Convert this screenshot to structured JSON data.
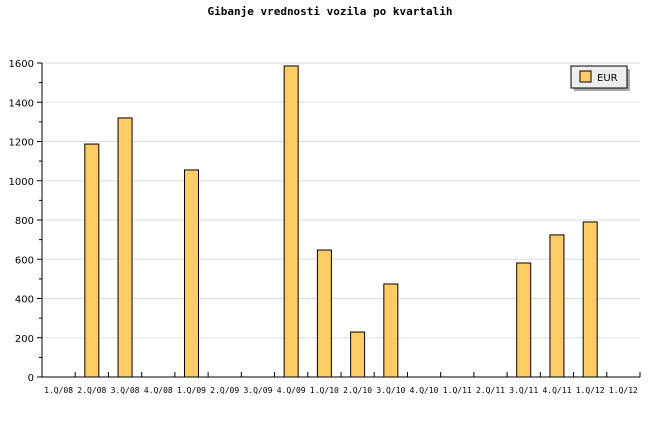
{
  "chart_data": {
    "type": "bar",
    "title": "Gibanje vrednosti vozila po kvartalih",
    "xlabel": "",
    "ylabel": "",
    "ylim": [
      0,
      1600
    ],
    "yticks": [
      0,
      200,
      400,
      600,
      800,
      1000,
      1200,
      1400,
      1600
    ],
    "grid": true,
    "legend_position": "top-right",
    "categories": [
      "1.Q/08",
      "2.Q/08",
      "3.Q/08",
      "4.Q/08",
      "1.Q/09",
      "2.Q/09",
      "3.Q/09",
      "4.Q/09",
      "1.Q/10",
      "2.Q/10",
      "3.Q/10",
      "4.Q/10",
      "1.Q/11",
      "2.Q/11",
      "3.Q/11",
      "4.Q/11",
      "1.Q/12",
      "1.Q/12"
    ],
    "series": [
      {
        "name": "EUR",
        "color": "#ffcc66",
        "values": [
          0,
          1187,
          1320,
          0,
          1055,
          0,
          0,
          1585,
          647,
          229,
          474,
          0,
          0,
          0,
          581,
          724,
          790,
          0
        ]
      }
    ]
  }
}
